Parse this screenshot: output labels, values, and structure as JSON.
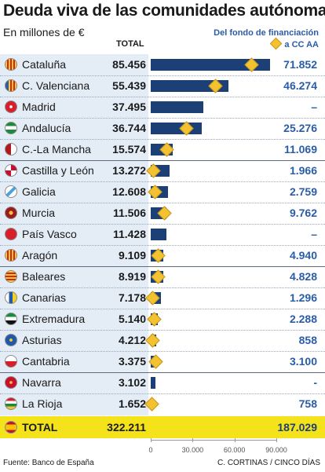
{
  "header": {
    "title": "Deuda viva de las comunidades autónomas",
    "subtitle": "En millones de €",
    "col_total": "TOTAL",
    "col_fondo_line1": "Del fondo de financiación",
    "col_fondo_line2": "a CC AA"
  },
  "colors": {
    "bar": "#1c3f75",
    "marker": "#f2c230",
    "fondo_text": "#2a5ca8",
    "total_row_bg": "#f4e21a",
    "left_panel_bg": "#e4ecf5"
  },
  "chart_data": {
    "type": "bar",
    "orientation": "horizontal",
    "title": "Deuda viva de las comunidades autónomas",
    "subtitle": "En millones de €",
    "xlim": [
      0,
      90000
    ],
    "ticks": [
      "0",
      "30.000",
      "60.000",
      "90.000"
    ],
    "tick_values": [
      0,
      30000,
      60000,
      90000
    ],
    "legend": "Del fondo de financiación a CC AA",
    "rows": [
      {
        "name": "Cataluña",
        "total": 85456,
        "total_label": "85.456",
        "fondo": 71852,
        "fondo_label": "71.852",
        "flag": "cataluna"
      },
      {
        "name": "C. Valenciana",
        "total": 55439,
        "total_label": "55.439",
        "fondo": 46274,
        "fondo_label": "46.274",
        "flag": "valencia"
      },
      {
        "name": "Madrid",
        "total": 37495,
        "total_label": "37.495",
        "fondo": null,
        "fondo_label": "–",
        "flag": "madrid"
      },
      {
        "name": "Andalucía",
        "total": 36744,
        "total_label": "36.744",
        "fondo": 25276,
        "fondo_label": "25.276",
        "flag": "andalucia"
      },
      {
        "name": "C.-La Mancha",
        "total": 15574,
        "total_label": "15.574",
        "fondo": 11069,
        "fondo_label": "11.069",
        "flag": "clm"
      },
      {
        "name": "Castilla y León",
        "total": 13272,
        "total_label": "13.272",
        "fondo": 1966,
        "fondo_label": "1.966",
        "flag": "cyl"
      },
      {
        "name": "Galicia",
        "total": 12608,
        "total_label": "12.608",
        "fondo": 2759,
        "fondo_label": "2.759",
        "flag": "galicia"
      },
      {
        "name": "Murcia",
        "total": 11506,
        "total_label": "11.506",
        "fondo": 9762,
        "fondo_label": "9.762",
        "flag": "murcia"
      },
      {
        "name": "País Vasco",
        "total": 11428,
        "total_label": "11.428",
        "fondo": null,
        "fondo_label": "–",
        "flag": "paisvasco"
      },
      {
        "name": "Aragón",
        "total": 9109,
        "total_label": "9.109",
        "fondo": 4940,
        "fondo_label": "4.940",
        "flag": "aragon"
      },
      {
        "name": "Baleares",
        "total": 8919,
        "total_label": "8.919",
        "fondo": 4828,
        "fondo_label": "4.828",
        "flag": "baleares"
      },
      {
        "name": "Canarias",
        "total": 7178,
        "total_label": "7.178",
        "fondo": 1296,
        "fondo_label": "1.296",
        "flag": "canarias"
      },
      {
        "name": "Extremadura",
        "total": 5140,
        "total_label": "5.140",
        "fondo": 2288,
        "fondo_label": "2.288",
        "flag": "extremadura"
      },
      {
        "name": "Asturias",
        "total": 4212,
        "total_label": "4.212",
        "fondo": 858,
        "fondo_label": "858",
        "flag": "asturias"
      },
      {
        "name": "Cantabria",
        "total": 3375,
        "total_label": "3.375",
        "fondo": 3100,
        "fondo_label": "3.100",
        "flag": "cantabria"
      },
      {
        "name": "Navarra",
        "total": 3102,
        "total_label": "3.102",
        "fondo": null,
        "fondo_label": "-",
        "flag": "navarra"
      },
      {
        "name": "La Rioja",
        "total": 1652,
        "total_label": "1.652",
        "fondo": 758,
        "fondo_label": "758",
        "flag": "larioja"
      }
    ],
    "total_row": {
      "name": "TOTAL",
      "total_label": "322.211",
      "fondo_label": "187.029",
      "flag": "espana"
    }
  },
  "footer": {
    "source": "Fuente: Banco de España",
    "credit": "C. CORTINAS / CINCO DÍAS"
  }
}
